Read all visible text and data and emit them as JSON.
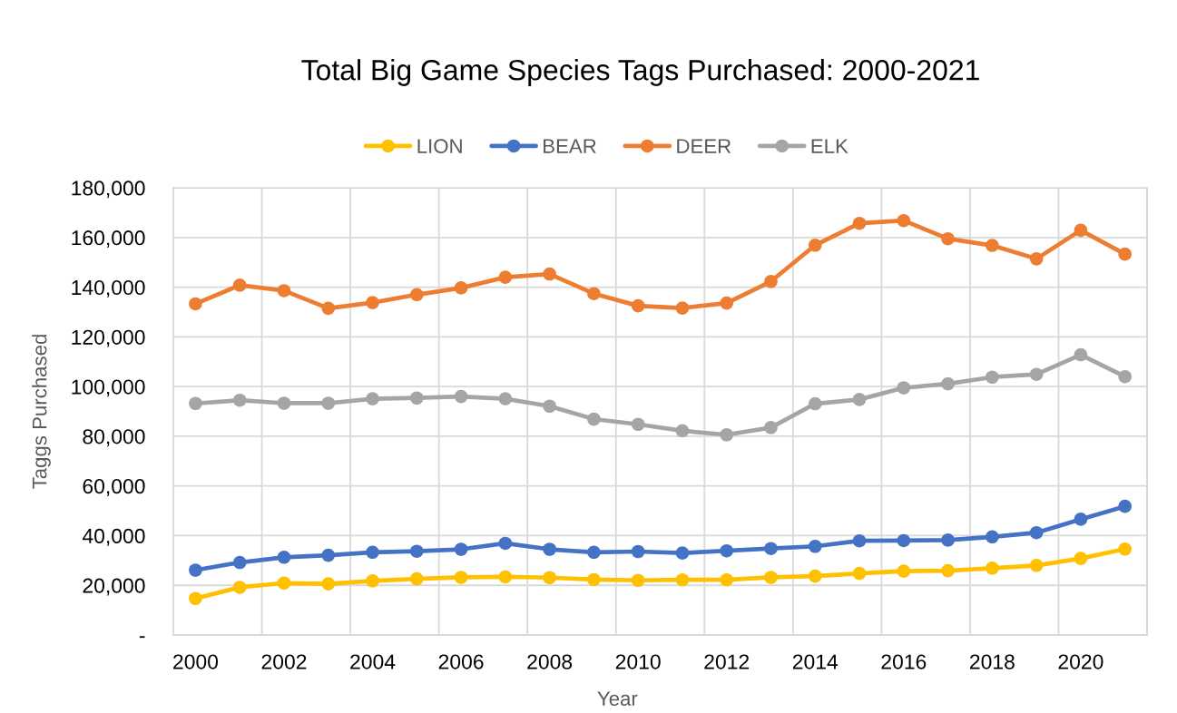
{
  "chart_data": {
    "type": "line",
    "title": "Total Big Game Species Tags Purchased: 2000-2021",
    "xlabel": "Year",
    "ylabel": "Taggs Purchased",
    "categories": [
      "2000",
      null,
      "2002",
      null,
      "2004",
      null,
      "2006",
      null,
      "2008",
      null,
      "2010",
      null,
      "2012",
      null,
      "2014",
      null,
      "2016",
      null,
      "2018",
      null,
      "2020",
      null
    ],
    "series": [
      {
        "name": "LION",
        "color": "#ffc000",
        "values": [
          14700,
          19200,
          20900,
          20600,
          21800,
          22600,
          23200,
          23400,
          23100,
          22300,
          22000,
          22200,
          22200,
          23200,
          23700,
          24800,
          25700,
          25900,
          26900,
          28000,
          30800,
          34600
        ]
      },
      {
        "name": "BEAR",
        "color": "#4472c4",
        "values": [
          26100,
          29200,
          31300,
          32100,
          33300,
          33700,
          34500,
          36900,
          34500,
          33300,
          33600,
          33000,
          33900,
          34800,
          35700,
          37900,
          38000,
          38200,
          39500,
          41200,
          46600,
          51800
        ]
      },
      {
        "name": "DEER",
        "color": "#ed7d31",
        "values": [
          133300,
          140800,
          138600,
          131500,
          133800,
          137000,
          139700,
          144000,
          145300,
          137400,
          132500,
          131600,
          133600,
          142300,
          156900,
          165700,
          166800,
          159500,
          156800,
          151400,
          162900,
          153300
        ]
      },
      {
        "name": "ELK",
        "color": "#a5a5a5",
        "values": [
          93200,
          94500,
          93300,
          93300,
          95100,
          95400,
          96000,
          95100,
          92100,
          86900,
          84800,
          82200,
          80600,
          83500,
          93100,
          94800,
          99500,
          101100,
          103800,
          104900,
          112800,
          104000
        ]
      }
    ],
    "ylim": [
      0,
      180000
    ],
    "yticks": [
      {
        "value": 0,
        "label": "-"
      },
      {
        "value": 20000,
        "label": "20,000"
      },
      {
        "value": 40000,
        "label": "40,000"
      },
      {
        "value": 60000,
        "label": "60,000"
      },
      {
        "value": 80000,
        "label": "80,000"
      },
      {
        "value": 100000,
        "label": "100,000"
      },
      {
        "value": 120000,
        "label": "120,000"
      },
      {
        "value": 140000,
        "label": "140,000"
      },
      {
        "value": 160000,
        "label": "160,000"
      },
      {
        "value": 180000,
        "label": "180,000"
      }
    ],
    "grid": true,
    "legend": "top",
    "marker": "circle",
    "line_style": "solid"
  }
}
